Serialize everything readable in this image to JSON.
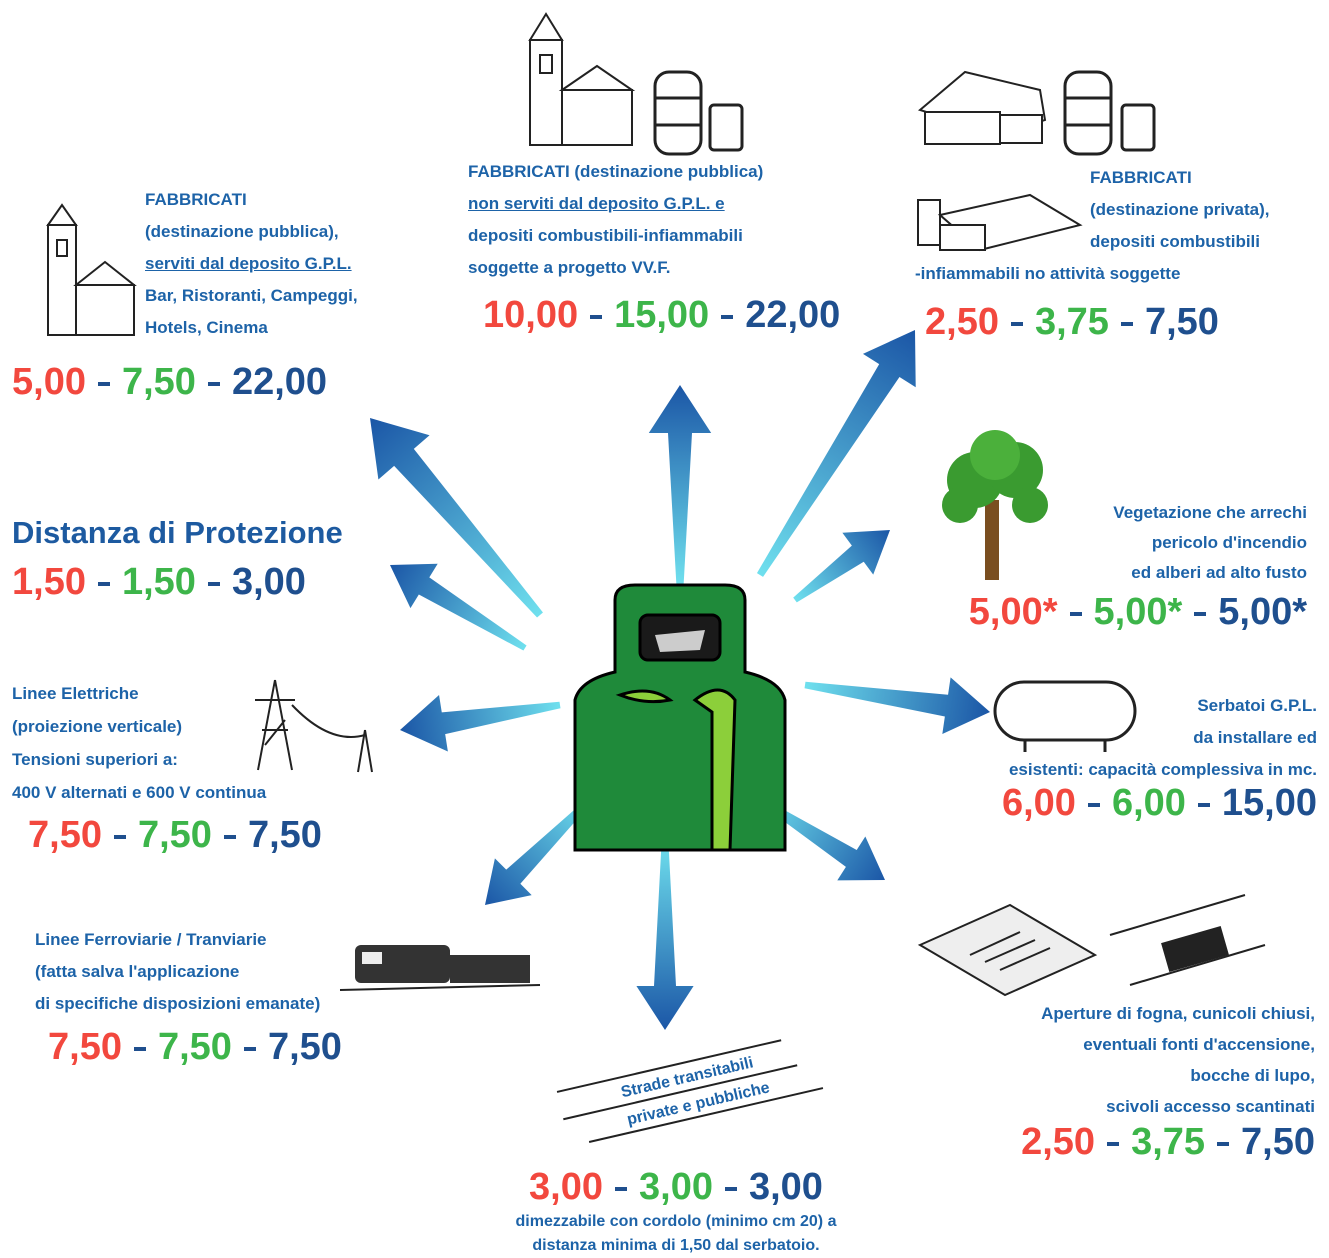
{
  "nodes": [
    {
      "lines": [
        "FABBRICATI",
        "(destinazione pubblica),",
        "serviti dal deposito G.P.L.",
        "Bar, Ristoranti, Campeggi,",
        "Hotels, Cinema"
      ],
      "distances": [
        "5,00",
        "7,50",
        "22,00"
      ]
    },
    {
      "lines": [
        "FABBRICATI (destinazione pubblica)",
        "non serviti dal deposito G.P.L. e",
        "depositi combustibili-infiammabili",
        "soggette a progetto VV.F."
      ],
      "distances": [
        "10,00",
        "15,00",
        "22,00"
      ]
    },
    {
      "lines": [
        "FABBRICATI",
        "(destinazione privata),",
        "depositi combustibili",
        "-infiammabili no attività soggette"
      ],
      "distances": [
        "2,50",
        "3,75",
        "7,50"
      ]
    },
    {
      "title": "Distanza di Protezione",
      "distances": [
        "1,50",
        "1,50",
        "3,00"
      ]
    },
    {
      "lines": [
        "Vegetazione che arrechi",
        "pericolo d'incendio",
        "ed alberi ad alto fusto"
      ],
      "distances": [
        "5,00*",
        "5,00*",
        "5,00*"
      ]
    },
    {
      "lines": [
        "Linee Elettriche",
        "(proiezione verticale)",
        "Tensioni superiori a:",
        "400 V alternati e 600 V continua"
      ],
      "distances": [
        "7,50",
        "7,50",
        "7,50"
      ]
    },
    {
      "lines": [
        "Serbatoi G.P.L.",
        "da installare ed",
        "esistenti: capacità complessiva in mc."
      ],
      "distances": [
        "6,00",
        "6,00",
        "15,00"
      ]
    },
    {
      "lines": [
        "Linee Ferroviarie / Tranviarie",
        "(fatta salva l'applicazione",
        "di specifiche disposizioni emanate)"
      ],
      "distances": [
        "7,50",
        "7,50",
        "7,50"
      ]
    },
    {
      "lines": [
        "Strade transitabili",
        "private e pubbliche"
      ],
      "distances": [
        "3,00",
        "3,00",
        "3,00"
      ],
      "notes": [
        "dimezzabile con cordolo (minimo cm 20) a",
        "distanza minima di 1,50 dal serbatoio."
      ]
    },
    {
      "lines": [
        "Aperture di fogna, cunicoli chiusi,",
        "eventuali fonti d'accensione,",
        "bocche di lupo,",
        "scivoli accesso scantinati"
      ],
      "distances": [
        "2,50",
        "3,75",
        "7,50"
      ]
    }
  ]
}
